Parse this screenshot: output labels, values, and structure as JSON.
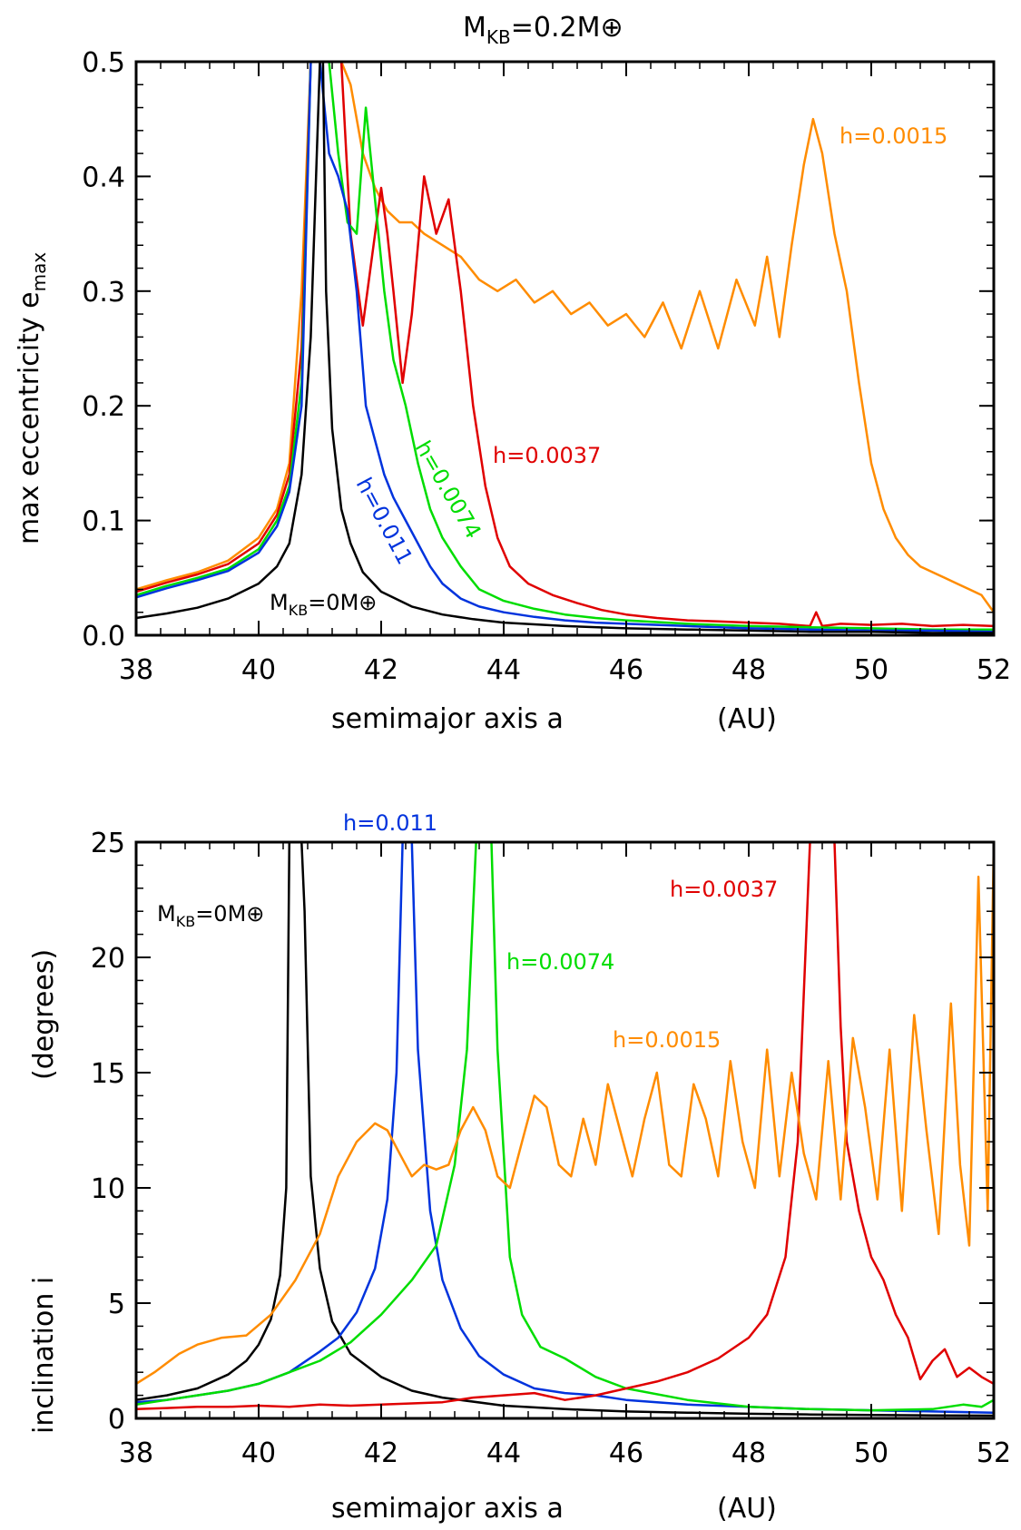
{
  "chart_data": [
    {
      "type": "line",
      "title_main": "M",
      "title_sub": "KB",
      "title_rest": "=0.2M",
      "title_sym": "⊕",
      "xlabel": "semimajor axis a",
      "xunit": "(AU)",
      "ylabel_main": "max eccentricity e",
      "ylabel_sub": "max",
      "xlim": [
        38,
        52
      ],
      "ylim": [
        0,
        0.5
      ],
      "xticks": [
        "38",
        "40",
        "42",
        "44",
        "46",
        "48",
        "50",
        "52"
      ],
      "yticks": [
        "0.0",
        "0.1",
        "0.2",
        "0.3",
        "0.4",
        "0.5"
      ],
      "labels": {
        "orange": "h=0.0015",
        "red": "h=0.0037",
        "green": "h=0.0074",
        "blue": "h=0.011",
        "black_main": "M",
        "black_sub": "KB",
        "black_rest": "=0M",
        "black_sym": "⊕"
      },
      "series": [
        {
          "name": "h=0.0015",
          "color": "#ff8c00",
          "x": [
            38.0,
            38.5,
            39.0,
            39.5,
            40.0,
            40.3,
            40.5,
            40.7,
            40.85,
            41.05,
            41.2,
            41.35,
            41.5,
            41.7,
            41.9,
            42.1,
            42.3,
            42.5,
            42.7,
            43.0,
            43.3,
            43.6,
            43.9,
            44.2,
            44.5,
            44.8,
            45.1,
            45.4,
            45.7,
            46.0,
            46.3,
            46.6,
            46.9,
            47.2,
            47.5,
            47.8,
            48.1,
            48.3,
            48.5,
            48.7,
            48.9,
            49.05,
            49.2,
            49.4,
            49.6,
            49.8,
            50.0,
            50.2,
            50.4,
            50.6,
            50.8,
            51.0,
            51.2,
            51.4,
            51.6,
            51.8,
            52.0
          ],
          "y": [
            0.04,
            0.048,
            0.055,
            0.065,
            0.085,
            0.11,
            0.15,
            0.3,
            0.5,
            0.5,
            0.5,
            0.5,
            0.48,
            0.42,
            0.39,
            0.37,
            0.36,
            0.36,
            0.35,
            0.34,
            0.33,
            0.31,
            0.3,
            0.31,
            0.29,
            0.3,
            0.28,
            0.29,
            0.27,
            0.28,
            0.26,
            0.29,
            0.25,
            0.3,
            0.25,
            0.31,
            0.27,
            0.33,
            0.26,
            0.34,
            0.41,
            0.45,
            0.42,
            0.35,
            0.3,
            0.22,
            0.15,
            0.11,
            0.085,
            0.07,
            0.06,
            0.055,
            0.05,
            0.045,
            0.04,
            0.035,
            0.02
          ]
        },
        {
          "name": "h=0.0037",
          "color": "#e00000",
          "x": [
            38.0,
            38.5,
            39.0,
            39.5,
            40.0,
            40.3,
            40.5,
            40.7,
            40.85,
            41.0,
            41.15,
            41.35,
            41.5,
            41.7,
            41.85,
            42.0,
            42.1,
            42.2,
            42.35,
            42.5,
            42.7,
            42.9,
            43.1,
            43.3,
            43.5,
            43.7,
            43.9,
            44.1,
            44.4,
            44.8,
            45.2,
            45.6,
            46.0,
            46.5,
            47.0,
            47.5,
            48.0,
            48.5,
            49.0,
            49.1,
            49.2,
            49.5,
            50.0,
            50.5,
            51.0,
            51.5,
            52.0
          ],
          "y": [
            0.038,
            0.046,
            0.053,
            0.062,
            0.08,
            0.105,
            0.14,
            0.25,
            0.5,
            0.5,
            0.5,
            0.5,
            0.35,
            0.27,
            0.33,
            0.39,
            0.35,
            0.3,
            0.22,
            0.28,
            0.4,
            0.35,
            0.38,
            0.3,
            0.2,
            0.13,
            0.085,
            0.06,
            0.045,
            0.035,
            0.028,
            0.022,
            0.018,
            0.015,
            0.013,
            0.012,
            0.011,
            0.01,
            0.008,
            0.02,
            0.008,
            0.01,
            0.009,
            0.01,
            0.008,
            0.009,
            0.008
          ]
        },
        {
          "name": "h=0.0074",
          "color": "#00dd00",
          "x": [
            38.0,
            38.5,
            39.0,
            39.5,
            40.0,
            40.3,
            40.5,
            40.7,
            40.85,
            41.0,
            41.15,
            41.3,
            41.45,
            41.6,
            41.75,
            41.9,
            42.05,
            42.2,
            42.4,
            42.6,
            42.8,
            43.0,
            43.3,
            43.6,
            44.0,
            44.5,
            45.0,
            45.5,
            46.0,
            47.0,
            48.0,
            49.0,
            50.0,
            51.0,
            52.0
          ],
          "y": [
            0.035,
            0.043,
            0.05,
            0.058,
            0.075,
            0.1,
            0.13,
            0.22,
            0.5,
            0.5,
            0.5,
            0.42,
            0.36,
            0.35,
            0.46,
            0.38,
            0.3,
            0.24,
            0.2,
            0.15,
            0.11,
            0.085,
            0.06,
            0.04,
            0.03,
            0.023,
            0.018,
            0.015,
            0.013,
            0.01,
            0.008,
            0.007,
            0.006,
            0.005,
            0.005
          ]
        },
        {
          "name": "h=0.011",
          "color": "#0033dd",
          "x": [
            38.0,
            38.5,
            39.0,
            39.5,
            40.0,
            40.3,
            40.5,
            40.7,
            40.85,
            41.0,
            41.15,
            41.3,
            41.45,
            41.6,
            41.75,
            41.9,
            42.05,
            42.2,
            42.4,
            42.6,
            42.8,
            43.0,
            43.3,
            43.6,
            44.0,
            44.5,
            45.0,
            45.5,
            46.0,
            47.0,
            48.0,
            49.0,
            50.0,
            51.0,
            52.0
          ],
          "y": [
            0.033,
            0.041,
            0.048,
            0.056,
            0.072,
            0.095,
            0.125,
            0.2,
            0.5,
            0.5,
            0.42,
            0.4,
            0.37,
            0.3,
            0.2,
            0.17,
            0.14,
            0.12,
            0.1,
            0.08,
            0.06,
            0.045,
            0.032,
            0.025,
            0.02,
            0.016,
            0.013,
            0.011,
            0.01,
            0.008,
            0.006,
            0.005,
            0.004,
            0.004,
            0.003
          ]
        },
        {
          "name": "M_KB=0M",
          "color": "#000000",
          "x": [
            38.0,
            38.5,
            39.0,
            39.5,
            40.0,
            40.3,
            40.5,
            40.7,
            40.85,
            40.95,
            41.0,
            41.05,
            41.1,
            41.2,
            41.35,
            41.5,
            41.7,
            42.0,
            42.5,
            43.0,
            43.5,
            44.0,
            45.0,
            46.0,
            47.0,
            48.0,
            49.0,
            50.0,
            51.0,
            52.0
          ],
          "y": [
            0.015,
            0.019,
            0.024,
            0.032,
            0.045,
            0.06,
            0.08,
            0.14,
            0.26,
            0.42,
            0.5,
            0.5,
            0.3,
            0.18,
            0.11,
            0.08,
            0.055,
            0.038,
            0.025,
            0.018,
            0.014,
            0.011,
            0.008,
            0.006,
            0.005,
            0.004,
            0.003,
            0.003,
            0.002,
            0.002
          ]
        }
      ]
    },
    {
      "type": "line",
      "xlabel": "semimajor axis a",
      "xunit": "(AU)",
      "ylabel_a": "inclination i",
      "ylabel_b": "(degrees)",
      "xlim": [
        38,
        52
      ],
      "ylim": [
        0,
        25
      ],
      "xticks": [
        "38",
        "40",
        "42",
        "44",
        "46",
        "48",
        "50",
        "52"
      ],
      "yticks": [
        "0",
        "5",
        "10",
        "15",
        "20",
        "25"
      ],
      "labels": {
        "blue": "h=0.011",
        "red": "h=0.0037",
        "green": "h=0.0074",
        "orange": "h=0.0015",
        "black_main": "M",
        "black_sub": "KB",
        "black_rest": "=0M",
        "black_sym": "⊕"
      },
      "series": [
        {
          "name": "M_KB=0M",
          "color": "#000000",
          "x": [
            38.0,
            38.5,
            39.0,
            39.5,
            39.8,
            40.0,
            40.2,
            40.35,
            40.45,
            40.5,
            40.7,
            40.75,
            40.85,
            41.0,
            41.2,
            41.5,
            42.0,
            42.5,
            43.0,
            44.0,
            45.0,
            46.0,
            47.0,
            48.0,
            49.0,
            50.0,
            51.0,
            52.0
          ],
          "y": [
            0.8,
            1.0,
            1.3,
            1.9,
            2.5,
            3.2,
            4.3,
            6.2,
            10.0,
            25.0,
            25.0,
            22.0,
            10.5,
            6.5,
            4.2,
            2.8,
            1.8,
            1.2,
            0.9,
            0.55,
            0.4,
            0.3,
            0.25,
            0.2,
            0.17,
            0.15,
            0.13,
            0.12
          ]
        },
        {
          "name": "h=0.011",
          "color": "#0033dd",
          "x": [
            38.0,
            38.5,
            39.0,
            39.5,
            40.0,
            40.5,
            41.0,
            41.3,
            41.6,
            41.9,
            42.1,
            42.25,
            42.35,
            42.5,
            42.6,
            42.8,
            43.0,
            43.3,
            43.6,
            44.0,
            44.5,
            45.0,
            45.5,
            46.0,
            47.0,
            48.0,
            49.0,
            50.0,
            51.0,
            52.0
          ],
          "y": [
            0.7,
            0.8,
            1.0,
            1.2,
            1.5,
            2.0,
            2.9,
            3.5,
            4.6,
            6.5,
            9.5,
            15.0,
            25.0,
            25.0,
            16.0,
            9.0,
            6.0,
            3.9,
            2.7,
            1.9,
            1.3,
            1.1,
            1.0,
            0.8,
            0.6,
            0.5,
            0.4,
            0.35,
            0.3,
            0.25
          ]
        },
        {
          "name": "h=0.0074",
          "color": "#00dd00",
          "x": [
            38.0,
            38.5,
            39.0,
            39.5,
            40.0,
            40.5,
            41.0,
            41.5,
            42.0,
            42.5,
            42.9,
            43.2,
            43.4,
            43.55,
            43.8,
            43.9,
            44.1,
            44.3,
            44.6,
            45.0,
            45.5,
            46.0,
            47.0,
            48.0,
            49.0,
            50.0,
            51.0,
            51.5,
            51.8,
            52.0
          ],
          "y": [
            0.6,
            0.8,
            1.0,
            1.2,
            1.5,
            2.0,
            2.5,
            3.3,
            4.5,
            6.0,
            7.5,
            11.0,
            16.0,
            25.0,
            25.0,
            16.0,
            7.0,
            4.5,
            3.1,
            2.6,
            1.8,
            1.3,
            0.8,
            0.5,
            0.4,
            0.35,
            0.4,
            0.6,
            0.5,
            0.8
          ]
        },
        {
          "name": "h=0.0037",
          "color": "#e00000",
          "x": [
            38.0,
            38.5,
            39.0,
            39.5,
            40.0,
            40.5,
            41.0,
            41.5,
            42.0,
            42.5,
            43.0,
            43.5,
            44.0,
            44.5,
            45.0,
            45.5,
            46.0,
            46.5,
            47.0,
            47.5,
            48.0,
            48.3,
            48.6,
            48.8,
            49.0,
            49.1,
            49.4,
            49.5,
            49.6,
            49.8,
            50.0,
            50.2,
            50.4,
            50.6,
            50.8,
            51.0,
            51.2,
            51.4,
            51.6,
            51.8,
            52.0
          ],
          "y": [
            0.4,
            0.45,
            0.5,
            0.5,
            0.55,
            0.5,
            0.6,
            0.55,
            0.6,
            0.65,
            0.7,
            0.9,
            1.0,
            1.1,
            0.8,
            1.0,
            1.3,
            1.6,
            2.0,
            2.6,
            3.5,
            4.5,
            7.0,
            12.0,
            25.0,
            25.0,
            25.0,
            17.0,
            12.0,
            9.0,
            7.0,
            6.0,
            4.5,
            3.5,
            1.7,
            2.5,
            3.0,
            1.8,
            2.2,
            1.8,
            1.5
          ]
        },
        {
          "name": "h=0.0015",
          "color": "#ff8c00",
          "x": [
            38.0,
            38.3,
            38.7,
            39.0,
            39.4,
            39.8,
            40.2,
            40.6,
            41.0,
            41.3,
            41.6,
            41.9,
            42.1,
            42.3,
            42.5,
            42.7,
            42.9,
            43.1,
            43.3,
            43.5,
            43.7,
            43.9,
            44.1,
            44.3,
            44.5,
            44.7,
            44.9,
            45.1,
            45.3,
            45.5,
            45.7,
            45.9,
            46.1,
            46.3,
            46.5,
            46.7,
            46.9,
            47.1,
            47.3,
            47.5,
            47.7,
            47.9,
            48.1,
            48.3,
            48.5,
            48.7,
            48.9,
            49.1,
            49.3,
            49.5,
            49.7,
            49.9,
            50.1,
            50.3,
            50.5,
            50.7,
            50.9,
            51.1,
            51.3,
            51.45,
            51.6,
            51.75,
            51.9,
            52.0
          ],
          "y": [
            1.5,
            2.0,
            2.8,
            3.2,
            3.5,
            3.6,
            4.5,
            6.0,
            8.0,
            10.5,
            12.0,
            12.8,
            12.5,
            11.5,
            10.5,
            11.0,
            10.8,
            11.0,
            12.5,
            13.5,
            12.5,
            10.5,
            10.0,
            12.0,
            14.0,
            13.5,
            11.0,
            10.5,
            13.0,
            11.0,
            14.5,
            12.5,
            10.5,
            13.0,
            15.0,
            11.0,
            10.5,
            14.5,
            13.0,
            10.5,
            15.5,
            12.0,
            10.0,
            16.0,
            10.5,
            15.0,
            11.5,
            9.5,
            15.5,
            9.5,
            16.5,
            13.5,
            9.5,
            16.0,
            9.0,
            17.5,
            12.5,
            8.0,
            18.0,
            11.0,
            7.5,
            23.5,
            9.0,
            25.0
          ]
        }
      ]
    }
  ]
}
